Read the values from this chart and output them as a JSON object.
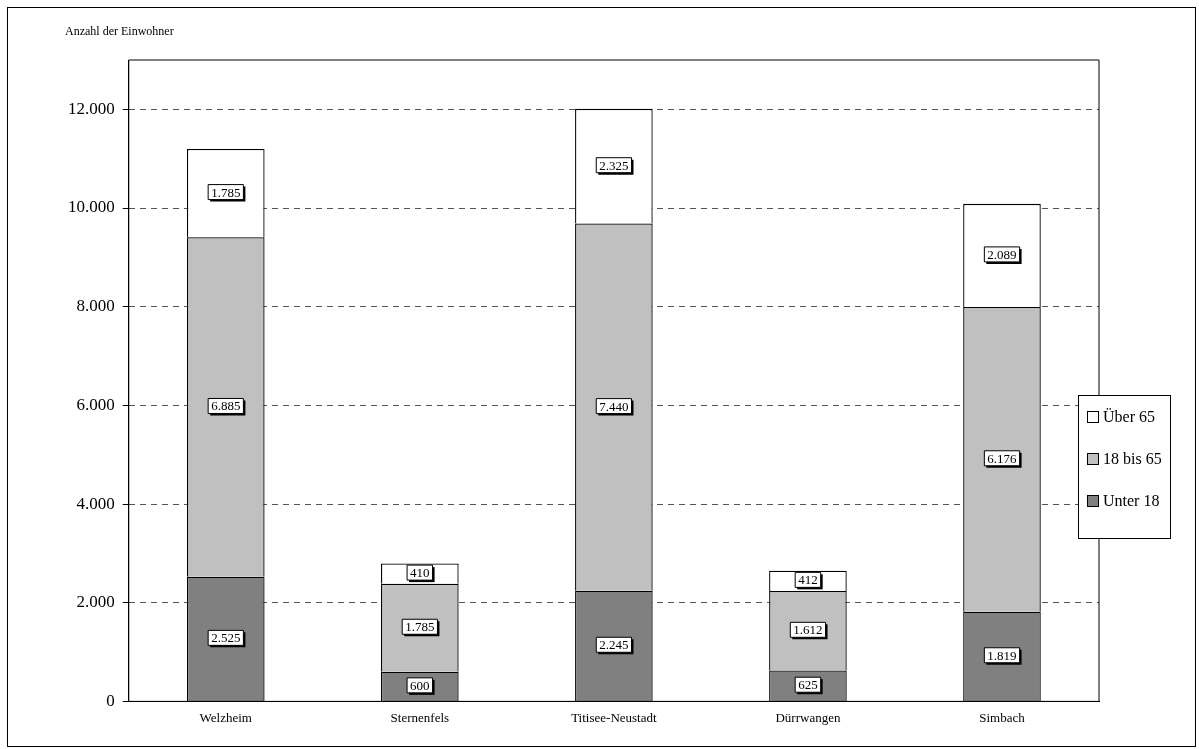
{
  "chart_data": {
    "type": "bar",
    "stacked": true,
    "ylabel": "Anzahl der Einwohner",
    "categories": [
      "Welzheim",
      "Sternenfels",
      "Titisee-Neustadt",
      "Dürrwangen",
      "Simbach"
    ],
    "series": [
      {
        "name": "Unter 18",
        "color": "#808080",
        "values": [
          2525,
          600,
          2245,
          625,
          1819
        ],
        "value_labels": [
          "2.525",
          "600",
          "2.245",
          "625",
          "1.819"
        ]
      },
      {
        "name": "18 bis 65",
        "color": "#c0c0c0",
        "values": [
          6885,
          1785,
          7440,
          1612,
          6176
        ],
        "value_labels": [
          "6.885",
          "1.785",
          "7.440",
          "1.612",
          "6.176"
        ]
      },
      {
        "name": "Über 65",
        "color": "#ffffff",
        "values": [
          1785,
          410,
          2325,
          412,
          2089
        ],
        "value_labels": [
          "1.785",
          "410",
          "2.325",
          "412",
          "2.089"
        ]
      }
    ],
    "ylim": [
      0,
      13000
    ],
    "yticks": [
      0,
      {
        "value": 2000,
        "label": "2.000"
      },
      {
        "value": 4000,
        "label": "4.000"
      },
      {
        "value": 6000,
        "label": "6.000"
      },
      {
        "value": 8000,
        "label": "8.000"
      },
      {
        "value": 10000,
        "label": "10.000"
      },
      {
        "value": 12000,
        "label": "12.000"
      }
    ],
    "grid": "y",
    "legend": "right"
  }
}
